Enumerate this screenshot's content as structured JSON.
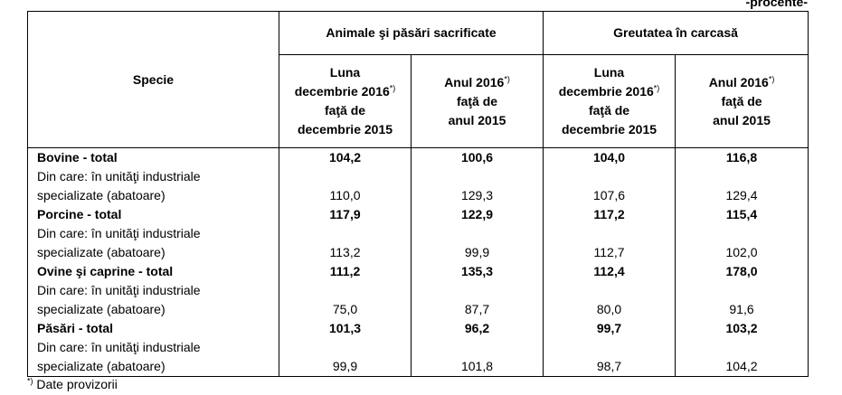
{
  "unit_label": "-procente-",
  "header": {
    "specie": "Specie",
    "group1": "Animale şi păsări sacrificate",
    "group2": "Greutatea în carcasă",
    "sub_month_l1": "Luna",
    "sub_month_l2": "decembrie 2016",
    "sub_month_l3": "faţă de",
    "sub_month_l4": "decembrie 2015",
    "sub_year_l1": "Anul 2016",
    "sub_year_l2": "faţă de",
    "sub_year_l3": "anul 2015",
    "footnote_mark": "*)"
  },
  "rows": [
    {
      "name": "Bovine - total",
      "v": [
        "104,2",
        "100,6",
        "104,0",
        "116,8"
      ]
    },
    {
      "name1": "Din care: în unităţi industriale",
      "name2": "specializate (abatoare)",
      "v": [
        "110,0",
        "129,3",
        "107,6",
        "129,4"
      ]
    },
    {
      "name": "Porcine - total",
      "v": [
        "117,9",
        "122,9",
        "117,2",
        "115,4"
      ]
    },
    {
      "name1": "Din care: în unităţi industriale",
      "name2": "specializate (abatoare)",
      "v": [
        "113,2",
        "99,9",
        "112,7",
        "102,0"
      ]
    },
    {
      "name": "Ovine şi caprine - total",
      "v": [
        "111,2",
        "135,3",
        "112,4",
        "178,0"
      ]
    },
    {
      "name1": "Din care: în unităţi industriale",
      "name2": "specializate (abatoare)",
      "v": [
        "75,0",
        "87,7",
        "80,0",
        "91,6"
      ]
    },
    {
      "name": "Păsări - total",
      "v": [
        "101,3",
        "96,2",
        "99,7",
        "103,2"
      ]
    },
    {
      "name1": "Din care: în unităţi industriale",
      "name2": "specializate (abatoare)",
      "v": [
        "99,9",
        "101,8",
        "98,7",
        "104,2"
      ]
    }
  ],
  "footnote": {
    "mark": "*)",
    "text": " Date provizorii"
  }
}
